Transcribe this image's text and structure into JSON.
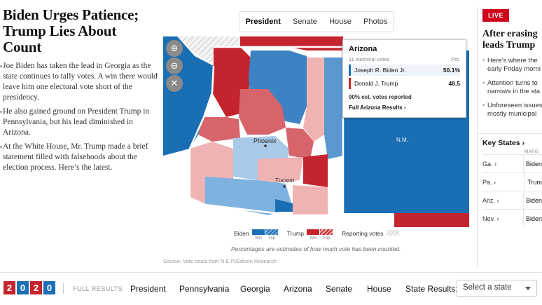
{
  "article": {
    "headline": "Biden Urges Patience; Trump Lies About Count",
    "bullets": [
      "Joe Biden has taken the lead in Georgia as the state continues to tally votes. A win there would leave him one electoral vote short of the presidency.",
      "He also gained ground on President Trump in Pennsylvania, but his lead diminished in Arizona.",
      "At the White House, Mr. Trump made a brief statement filled with falsehoods about the election process. Here’s the latest."
    ]
  },
  "map_tabs": [
    "President",
    "Senate",
    "House",
    "Photos"
  ],
  "map_tabs_active": "President",
  "map_labels": {
    "phoenix": "Phoenix",
    "tucson": "Tucson",
    "nm": "N.M."
  },
  "zoom_controls": {
    "zoom_in": "zoom-in-icon",
    "zoom_out": "zoom-out-icon",
    "close": "close-icon"
  },
  "tooltip": {
    "state": "Arizona",
    "electoral_votes": "11 electoral votes",
    "pct_header": "Pct.",
    "candidates": [
      {
        "name": "Joseph R. Biden Jr.",
        "pct": "50.1%",
        "color": "#1a6fb4"
      },
      {
        "name": "Donald J. Trump",
        "pct": "48.5",
        "color": "#c4242d"
      }
    ],
    "reported": "90% est. votes reported",
    "link": "Full Arizona Results ›"
  },
  "legend": {
    "biden": "Biden",
    "trump": "Trump",
    "win": "Win",
    "flip": "Flip",
    "reporting": "Reporting votes",
    "note": "Percentages are estimates of how much vote has been counted."
  },
  "source": "Source: Vote totals from N.E.P./Edison Research",
  "right_rail": {
    "live": "LIVE",
    "headline_line1": "After erasing",
    "headline_line2": "leads Trump",
    "bullets": [
      [
        "Here’s where the",
        "early Friday morni"
      ],
      [
        "Attention turns to",
        "narrows in the sta"
      ],
      [
        "Unforeseen issues",
        "mostly municipal"
      ]
    ]
  },
  "key_states": {
    "title": "Key States ›",
    "margin_header": "MARG",
    "rows": [
      {
        "state": "Ga. ›",
        "value": "Biden"
      },
      {
        "state": "Pa. ›",
        "value": "Trum"
      },
      {
        "state": "Ariz. ›",
        "value": "Biden"
      },
      {
        "state": "Nev. ›",
        "value": "Biden"
      }
    ]
  },
  "bottom_nav": {
    "year_digits": [
      "2",
      "0",
      "2",
      "0"
    ],
    "year_colors": [
      "#c4242d",
      "#1a6fb4",
      "#c4242d",
      "#1a6fb4"
    ],
    "full_results": "FULL RESULTS",
    "items": [
      "President",
      "Pennsylvania",
      "Georgia",
      "Arizona",
      "Senate",
      "House"
    ],
    "state_results_label": "State Results:",
    "select_placeholder": "Select a state"
  },
  "colors": {
    "biden_win": "#1a6fb4",
    "biden_lean": "#7fb3df",
    "biden_light": "#a9c9e8",
    "trump_win": "#c4242d",
    "trump_mid": "#d7646b",
    "trump_light": "#f0b3b4"
  }
}
